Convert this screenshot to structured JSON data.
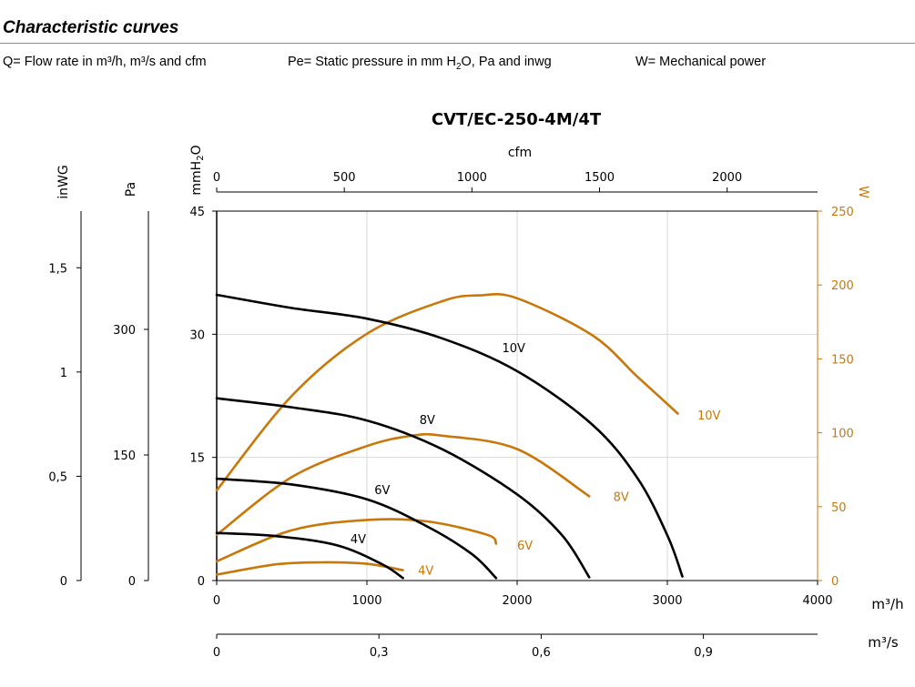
{
  "header": {
    "title": "Characteristic curves",
    "legend_q": "Q= Flow rate in m³/h, m³/s and cfm",
    "legend_pe_main": "Pe= Static pressure in mm H",
    "legend_pe_sub": "2",
    "legend_pe_tail": "O, Pa and inwg",
    "legend_w": "W= Mechanical power"
  },
  "colors": {
    "pressure_curve": "#000000",
    "power_curve": "#c8780a",
    "grid": "#d9d9d9"
  },
  "chart_data": {
    "type": "line",
    "title": "CVT/EC-250-4M/4T",
    "x_axis_bottom": {
      "label": "m³/h",
      "range": [
        0,
        4000
      ],
      "ticks": [
        0,
        1000,
        2000,
        3000,
        4000
      ],
      "tick_labels": [
        "0",
        "1000",
        "2000",
        "3000",
        "4000"
      ]
    },
    "x_axis_top": {
      "label": "cfm",
      "ticks": [
        0,
        500,
        1000,
        1500,
        2000
      ],
      "tick_labels": [
        "0",
        "500",
        "1000",
        "1500",
        "2000"
      ]
    },
    "x_axis_bottom2": {
      "label": "m³/s",
      "ticks": [
        0,
        0.3,
        0.6,
        0.9
      ],
      "tick_labels": [
        "0",
        "0,3",
        "0,6",
        "0,9"
      ]
    },
    "y_axis_left": {
      "label": "mmH2O",
      "label_main": "mmH",
      "label_sub": "2",
      "label_tail": "O",
      "range": [
        0,
        45
      ],
      "ticks": [
        0,
        15,
        30,
        45
      ],
      "tick_labels": [
        "0",
        "15",
        "30",
        "45"
      ]
    },
    "y_axis_pa": {
      "label": "Pa",
      "ticks": [
        0,
        150,
        300
      ],
      "tick_labels": [
        "0",
        "150",
        "300"
      ]
    },
    "y_axis_inwg": {
      "label": "inWG",
      "ticks": [
        0,
        0.5,
        1,
        1.5
      ],
      "tick_labels": [
        "0",
        "0,5",
        "1",
        "1,5"
      ]
    },
    "y_axis_right": {
      "label": "W",
      "range": [
        0,
        250
      ],
      "ticks": [
        0,
        50,
        100,
        150,
        200,
        250
      ],
      "tick_labels": [
        "0",
        "50",
        "100",
        "150",
        "200",
        "250"
      ]
    },
    "grid_vertical": true,
    "grid_horizontal": true,
    "pressure_series": [
      {
        "name": "10V",
        "label_at": [
          1900,
          28.4
        ],
        "points": [
          [
            0,
            34.8
          ],
          [
            500,
            33.2
          ],
          [
            1000,
            31.9
          ],
          [
            1500,
            29.5
          ],
          [
            2000,
            25.5
          ],
          [
            2500,
            19.0
          ],
          [
            2800,
            12.5
          ],
          [
            3000,
            5.5
          ],
          [
            3100,
            0.5
          ]
        ]
      },
      {
        "name": "8V",
        "label_at": [
          1350,
          19.6
        ],
        "points": [
          [
            0,
            22.2
          ],
          [
            500,
            21.1
          ],
          [
            1000,
            19.5
          ],
          [
            1500,
            16.0
          ],
          [
            2000,
            10.5
          ],
          [
            2300,
            5.5
          ],
          [
            2480,
            0.4
          ]
        ]
      },
      {
        "name": "6V",
        "label_at": [
          1050,
          11.1
        ],
        "points": [
          [
            0,
            12.4
          ],
          [
            500,
            11.7
          ],
          [
            1000,
            9.9
          ],
          [
            1400,
            6.6
          ],
          [
            1700,
            3.2
          ],
          [
            1860,
            0.3
          ]
        ]
      },
      {
        "name": "4V",
        "label_at": [
          890,
          5.1
        ],
        "points": [
          [
            0,
            5.8
          ],
          [
            400,
            5.4
          ],
          [
            800,
            4.3
          ],
          [
            1100,
            2.0
          ],
          [
            1240,
            0.3
          ]
        ]
      }
    ],
    "power_series": [
      {
        "name": "10V",
        "label_at": [
          3200,
          112
        ],
        "points": [
          [
            0,
            61
          ],
          [
            500,
            125
          ],
          [
            1000,
            167
          ],
          [
            1500,
            189
          ],
          [
            1750,
            193
          ],
          [
            2000,
            191
          ],
          [
            2500,
            166
          ],
          [
            2800,
            138
          ],
          [
            3070,
            113
          ]
        ]
      },
      {
        "name": "8V",
        "label_at": [
          2640,
          57
        ],
        "points": [
          [
            0,
            31
          ],
          [
            500,
            70
          ],
          [
            1000,
            91
          ],
          [
            1300,
            98
          ],
          [
            1500,
            98
          ],
          [
            2000,
            89
          ],
          [
            2480,
            57
          ]
        ]
      },
      {
        "name": "6V",
        "label_at": [
          2000,
          24
        ],
        "points": [
          [
            0,
            13
          ],
          [
            500,
            34
          ],
          [
            1000,
            41
          ],
          [
            1400,
            40
          ],
          [
            1800,
            31
          ],
          [
            1860,
            25
          ]
        ]
      },
      {
        "name": "4V",
        "label_at": [
          1340,
          7
        ],
        "points": [
          [
            0,
            4
          ],
          [
            400,
            11
          ],
          [
            700,
            12.3
          ],
          [
            1000,
            11.3
          ],
          [
            1240,
            7
          ]
        ]
      }
    ]
  }
}
